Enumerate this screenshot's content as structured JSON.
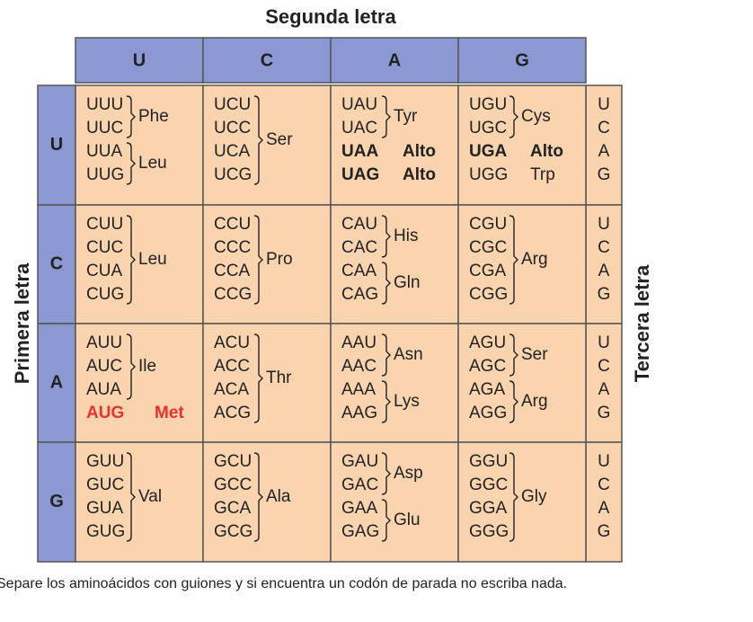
{
  "header": {
    "title": "Segunda letra",
    "columns": [
      "U",
      "C",
      "A",
      "G"
    ]
  },
  "left_label": "Primera letra",
  "right_label": "Tercera letra",
  "rows": [
    {
      "letter": "U",
      "third": [
        "U",
        "C",
        "A",
        "G"
      ],
      "cells": [
        {
          "groups": [
            {
              "codons": [
                "UUU",
                "UUC"
              ],
              "amino": "Phe"
            },
            {
              "codons": [
                "UUA",
                "UUG"
              ],
              "amino": "Leu"
            }
          ]
        },
        {
          "groups": [
            {
              "codons": [
                "UCU",
                "UCC",
                "UCA",
                "UCG"
              ],
              "amino": "Ser"
            }
          ]
        },
        {
          "groups": [
            {
              "codons": [
                "UAU",
                "UAC"
              ],
              "amino": "Tyr"
            },
            {
              "codons": [
                "UAA"
              ],
              "amino": "Alto",
              "bold": true
            },
            {
              "codons": [
                "UAG"
              ],
              "amino": "Alto",
              "bold": true
            }
          ]
        },
        {
          "groups": [
            {
              "codons": [
                "UGU",
                "UGC"
              ],
              "amino": "Cys"
            },
            {
              "codons": [
                "UGA"
              ],
              "amino": "Alto",
              "bold": true
            },
            {
              "codons": [
                "UGG"
              ],
              "amino": "Trp"
            }
          ]
        }
      ]
    },
    {
      "letter": "C",
      "third": [
        "U",
        "C",
        "A",
        "G"
      ],
      "cells": [
        {
          "groups": [
            {
              "codons": [
                "CUU",
                "CUC",
                "CUA",
                "CUG"
              ],
              "amino": "Leu"
            }
          ]
        },
        {
          "groups": [
            {
              "codons": [
                "CCU",
                "CCC",
                "CCA",
                "CCG"
              ],
              "amino": "Pro"
            }
          ]
        },
        {
          "groups": [
            {
              "codons": [
                "CAU",
                "CAC"
              ],
              "amino": "His"
            },
            {
              "codons": [
                "CAA",
                "CAG"
              ],
              "amino": "Gln"
            }
          ]
        },
        {
          "groups": [
            {
              "codons": [
                "CGU",
                "CGC",
                "CGA",
                "CGG"
              ],
              "amino": "Arg"
            }
          ]
        }
      ]
    },
    {
      "letter": "A",
      "third": [
        "U",
        "C",
        "A",
        "G"
      ],
      "cells": [
        {
          "groups": [
            {
              "codons": [
                "AUU",
                "AUC",
                "AUA"
              ],
              "amino": "Ile"
            },
            {
              "codons": [
                "AUG"
              ],
              "amino": "Met",
              "bold": true,
              "color": "#e8322c"
            }
          ]
        },
        {
          "groups": [
            {
              "codons": [
                "ACU",
                "ACC",
                "ACA",
                "ACG"
              ],
              "amino": "Thr"
            }
          ]
        },
        {
          "groups": [
            {
              "codons": [
                "AAU",
                "AAC"
              ],
              "amino": "Asn"
            },
            {
              "codons": [
                "AAA",
                "AAG"
              ],
              "amino": "Lys"
            }
          ]
        },
        {
          "groups": [
            {
              "codons": [
                "AGU",
                "AGC"
              ],
              "amino": "Ser"
            },
            {
              "codons": [
                "AGA",
                "AGG"
              ],
              "amino": "Arg"
            }
          ]
        }
      ]
    },
    {
      "letter": "G",
      "third": [
        "U",
        "C",
        "A",
        "G"
      ],
      "cells": [
        {
          "groups": [
            {
              "codons": [
                "GUU",
                "GUC",
                "GUA",
                "GUG"
              ],
              "amino": "Val"
            }
          ]
        },
        {
          "groups": [
            {
              "codons": [
                "GCU",
                "GCC",
                "GCA",
                "GCG"
              ],
              "amino": "Ala"
            }
          ]
        },
        {
          "groups": [
            {
              "codons": [
                "GAU",
                "GAC"
              ],
              "amino": "Asp"
            },
            {
              "codons": [
                "GAA",
                "GAG"
              ],
              "amino": "Glu"
            }
          ]
        },
        {
          "groups": [
            {
              "codons": [
                "GGU",
                "GGC",
                "GGA",
                "GGG"
              ],
              "amino": "Gly"
            }
          ]
        }
      ]
    }
  ],
  "footer": "Separe los aminoácidos con guiones y si encuentra un codón de parada no escriba nada."
}
